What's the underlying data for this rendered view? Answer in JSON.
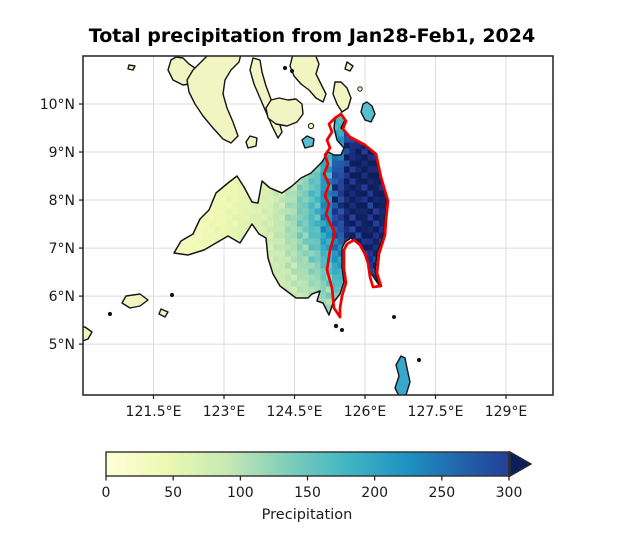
{
  "figure": {
    "title": "Total precipitation from Jan28-Feb1, 2024",
    "background": "#ffffff"
  },
  "layout_colors": {
    "map_frame": "#2e2e2e",
    "gridline": "#dcdcdc",
    "tick": "#1a1a1a"
  },
  "chart_data": {
    "type": "heatmap",
    "title": "Total precipitation from Jan28-Feb1, 2024",
    "x_axis": {
      "tick_labels": [
        "121.5°E",
        "123°E",
        "124.5°E",
        "126°E",
        "127.5°E",
        "129°E"
      ],
      "tick_values": [
        121.5,
        123,
        124.5,
        126,
        127.5,
        129
      ],
      "range": [
        120.0,
        130.0
      ]
    },
    "y_axis": {
      "tick_labels": [
        "10°N",
        "9°N",
        "8°N",
        "7°N",
        "6°N",
        "5°N"
      ],
      "tick_values": [
        10,
        9,
        8,
        7,
        6,
        5
      ],
      "range": [
        3.94,
        11.0
      ]
    },
    "grid": true,
    "colorbar": {
      "label": "Precipitation",
      "tick_labels": [
        "0",
        "50",
        "100",
        "150",
        "200",
        "250",
        "300"
      ],
      "tick_values": [
        0,
        50,
        100,
        150,
        200,
        250,
        300
      ],
      "range": [
        0,
        300
      ],
      "extend": "max",
      "colormap": "YlGnBu",
      "stops": [
        [
          0,
          "#ffffd9"
        ],
        [
          45,
          "#edf8b1"
        ],
        [
          90,
          "#c7e9b4"
        ],
        [
          135,
          "#7fcdbb"
        ],
        [
          180,
          "#41b6c4"
        ],
        [
          225,
          "#1d91c0"
        ],
        [
          270,
          "#225ea8"
        ],
        [
          310,
          "#253494"
        ],
        [
          345,
          "#0c1f5a"
        ]
      ]
    },
    "highlight_outline_color": "#f10000",
    "coastline_color": "#151515",
    "land_low_precip_color": "#f0f5c2",
    "small_island_fills": {
      "teal": "#57bfd2",
      "cyan": "#35a8cc",
      "pale": "#f0f5c2"
    },
    "precipitation_grid": {
      "units": "mm",
      "lon_start": 121.8,
      "lon_step": 0.25,
      "lat_start": 9.95,
      "lat_step": 0.25,
      "values": [
        [
          18,
          18,
          19,
          20,
          22,
          24,
          27,
          30,
          34,
          40,
          48,
          58,
          70,
          92,
          150,
          200,
          230,
          225,
          205,
          180
        ],
        [
          19,
          19,
          20,
          22,
          24,
          26,
          30,
          33,
          38,
          45,
          55,
          66,
          82,
          112,
          175,
          245,
          295,
          305,
          285,
          255
        ],
        [
          20,
          21,
          22,
          24,
          26,
          29,
          33,
          37,
          42,
          50,
          62,
          76,
          96,
          132,
          205,
          295,
          330,
          335,
          330,
          305
        ],
        [
          21,
          23,
          25,
          27,
          29,
          32,
          36,
          41,
          47,
          56,
          70,
          90,
          115,
          158,
          235,
          320,
          340,
          340,
          338,
          322
        ],
        [
          23,
          25,
          27,
          29,
          32,
          35,
          40,
          45,
          52,
          63,
          80,
          105,
          132,
          182,
          262,
          332,
          340,
          340,
          340,
          330
        ],
        [
          24,
          26,
          29,
          32,
          35,
          39,
          44,
          50,
          58,
          70,
          90,
          115,
          146,
          202,
          282,
          336,
          340,
          340,
          340,
          334
        ],
        [
          25,
          27,
          30,
          34,
          38,
          42,
          48,
          55,
          64,
          78,
          98,
          126,
          156,
          216,
          296,
          340,
          340,
          340,
          340,
          335
        ],
        [
          26,
          28,
          32,
          36,
          40,
          45,
          52,
          60,
          70,
          85,
          106,
          136,
          166,
          226,
          302,
          340,
          340,
          340,
          340,
          332
        ],
        [
          27,
          29,
          33,
          37,
          42,
          48,
          55,
          63,
          74,
          90,
          110,
          140,
          170,
          230,
          302,
          340,
          340,
          340,
          336,
          326
        ],
        [
          27,
          30,
          34,
          38,
          44,
          50,
          57,
          65,
          76,
          92,
          112,
          140,
          170,
          226,
          292,
          336,
          340,
          340,
          330,
          316
        ],
        [
          28,
          31,
          35,
          39,
          45,
          51,
          58,
          66,
          77,
          92,
          110,
          135,
          164,
          214,
          276,
          326,
          340,
          336,
          326,
          306
        ],
        [
          28,
          31,
          36,
          41,
          46,
          52,
          59,
          67,
          77,
          90,
          105,
          127,
          153,
          198,
          248,
          315,
          335,
          330,
          316,
          292
        ],
        [
          29,
          32,
          36,
          42,
          47,
          53,
          60,
          67,
          76,
          87,
          100,
          117,
          139,
          178,
          222,
          292,
          325,
          320,
          302,
          272
        ],
        [
          29,
          33,
          37,
          42,
          48,
          54,
          60,
          67,
          75,
          84,
          95,
          110,
          127,
          158,
          196,
          262,
          310,
          306,
          282,
          246
        ],
        [
          30,
          33,
          38,
          43,
          48,
          54,
          60,
          66,
          73,
          81,
          90,
          102,
          116,
          140,
          172,
          230,
          300,
          296,
          258,
          222
        ],
        [
          30,
          34,
          38,
          43,
          48,
          54,
          59,
          65,
          71,
          78,
          86,
          96,
          108,
          126,
          152,
          198,
          268,
          262,
          228,
          192
        ],
        [
          31,
          34,
          39,
          43,
          48,
          53,
          59,
          64,
          70,
          76,
          83,
          91,
          101,
          115,
          136,
          168,
          215,
          210,
          190,
          162
        ],
        [
          31,
          35,
          39,
          43,
          48,
          53,
          58,
          63,
          68,
          74,
          80,
          87,
          95,
          107,
          122,
          146,
          180,
          176,
          160,
          140
        ],
        [
          32,
          35,
          39,
          43,
          47,
          52,
          57,
          62,
          66,
          71,
          77,
          83,
          90,
          100,
          112,
          128,
          150,
          146,
          134,
          120
        ]
      ]
    }
  }
}
